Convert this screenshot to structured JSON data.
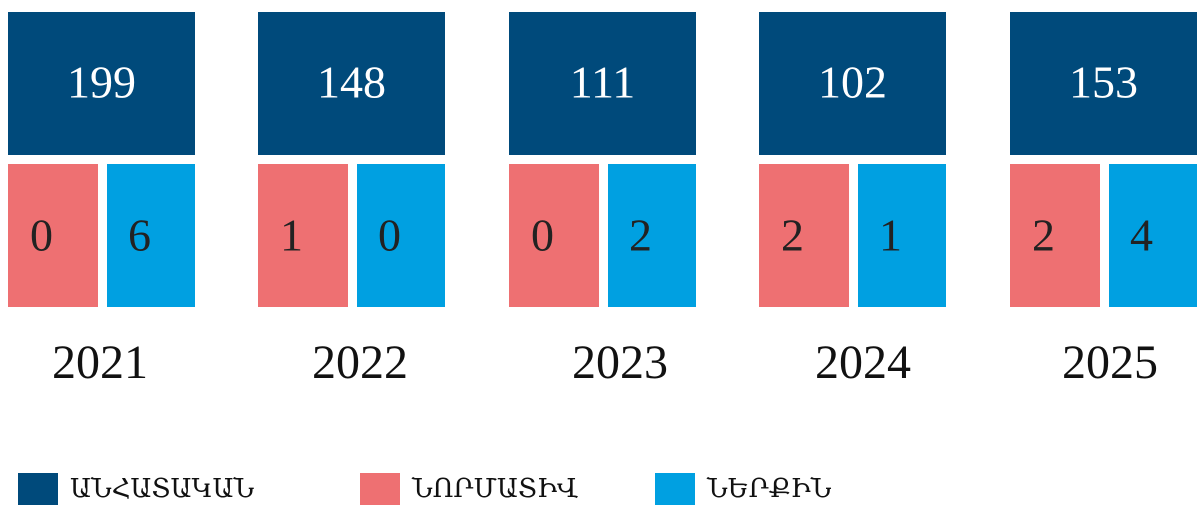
{
  "groups": [
    {
      "year": "2021",
      "values": [
        199,
        0,
        6
      ]
    },
    {
      "year": "2022",
      "values": [
        148,
        1,
        0
      ]
    },
    {
      "year": "2023",
      "values": [
        111,
        0,
        2
      ]
    },
    {
      "year": "2024",
      "values": [
        102,
        2,
        1
      ]
    },
    {
      "year": "2025",
      "values": [
        153,
        2,
        4
      ]
    }
  ],
  "legend": [
    {
      "name": "ԱՆՀԱՏԱԿԱՆ",
      "color": "#004a7b"
    },
    {
      "name": "ՆՈՐՄԱՏԻՎ",
      "color": "#ee7072"
    },
    {
      "name": "ՆԵՐՔԻՆ",
      "color": "#00a0e1"
    }
  ]
}
